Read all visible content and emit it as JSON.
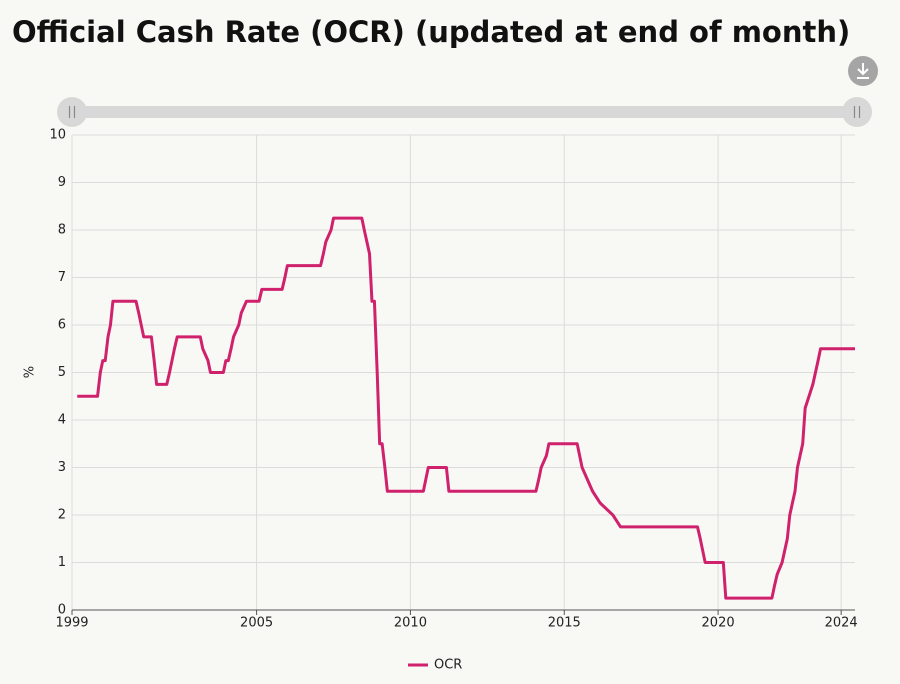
{
  "chart_data": {
    "type": "line",
    "title": "Official Cash Rate (OCR) (updated at end of month)",
    "y_label": "%",
    "xlim": [
      1999,
      2024.45
    ],
    "xticks": [
      1999,
      2005,
      2010,
      2015,
      2020,
      2024
    ],
    "ylim": [
      0,
      10
    ],
    "yticks": [
      0,
      1,
      2,
      3,
      4,
      5,
      6,
      7,
      8,
      9,
      10
    ],
    "grid": true,
    "legend": "bottom",
    "x": [
      1999.17,
      1999.83,
      1999.92,
      2000.0,
      2000.08,
      2000.17,
      2000.25,
      2000.33,
      2001.08,
      2001.17,
      2001.25,
      2001.33,
      2001.58,
      2001.67,
      2001.75,
      2002.08,
      2002.17,
      2002.25,
      2002.33,
      2002.42,
      2003.17,
      2003.25,
      2003.42,
      2003.5,
      2003.92,
      2004.0,
      2004.08,
      2004.17,
      2004.25,
      2004.42,
      2004.5,
      2004.67,
      2005.08,
      2005.17,
      2005.83,
      2005.92,
      2006.0,
      2007.08,
      2007.17,
      2007.25,
      2007.42,
      2007.5,
      2008.42,
      2008.5,
      2008.67,
      2008.75,
      2008.83,
      2008.92,
      2009.0,
      2009.08,
      2009.17,
      2009.25,
      2010.42,
      2010.5,
      2010.58,
      2011.17,
      2011.25,
      2014.08,
      2014.17,
      2014.25,
      2014.42,
      2014.5,
      2015.42,
      2015.5,
      2015.58,
      2015.75,
      2015.92,
      2016.17,
      2016.58,
      2016.83,
      2019.33,
      2019.42,
      2019.58,
      2020.17,
      2020.25,
      2021.75,
      2021.83,
      2021.92,
      2022.08,
      2022.25,
      2022.33,
      2022.5,
      2022.58,
      2022.75,
      2022.83,
      2023.08,
      2023.25,
      2023.33,
      2024.45
    ],
    "series": [
      {
        "name": "OCR",
        "color": "#d0216d",
        "values": [
          4.5,
          4.5,
          5.0,
          5.25,
          5.25,
          5.75,
          6.0,
          6.5,
          6.5,
          6.25,
          6.0,
          5.75,
          5.75,
          5.25,
          4.75,
          4.75,
          5.0,
          5.25,
          5.5,
          5.75,
          5.75,
          5.5,
          5.25,
          5.0,
          5.0,
          5.25,
          5.25,
          5.5,
          5.75,
          6.0,
          6.25,
          6.5,
          6.5,
          6.75,
          6.75,
          7.0,
          7.25,
          7.25,
          7.5,
          7.75,
          8.0,
          8.25,
          8.25,
          8.0,
          7.5,
          6.5,
          6.5,
          5.0,
          3.5,
          3.5,
          3.0,
          2.5,
          2.5,
          2.75,
          3.0,
          3.0,
          2.5,
          2.5,
          2.75,
          3.0,
          3.25,
          3.5,
          3.5,
          3.25,
          3.0,
          2.75,
          2.5,
          2.25,
          2.0,
          1.75,
          1.75,
          1.5,
          1.0,
          1.0,
          0.25,
          0.25,
          0.5,
          0.75,
          1.0,
          1.5,
          2.0,
          2.5,
          3.0,
          3.5,
          4.25,
          4.75,
          5.25,
          5.5,
          5.5
        ]
      }
    ]
  }
}
